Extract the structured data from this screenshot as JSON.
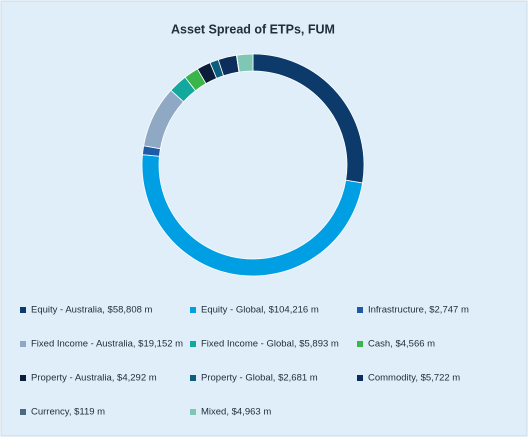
{
  "chart_data": {
    "type": "donut",
    "title": "Asset Spread of ETPs, FUM",
    "categories": [
      "Equity - Australia, $58,808 m",
      "Equity - Global, $104,216 m",
      "Infrastructure, $2,747 m",
      "Fixed Income - Australia, $19,152 m",
      "Fixed Income - Global, $5,893 m",
      "Cash, $4,566 m",
      "Property - Australia, $4,292 m",
      "Property - Global, $2,681 m",
      "Commodity, $5,722 m",
      "Currency, $119 m",
      "Mixed, $4,963 m"
    ],
    "values": [
      58808,
      104216,
      2747,
      19152,
      5893,
      4566,
      4292,
      2681,
      5722,
      119,
      4963
    ],
    "colors": [
      "#0b3a6b",
      "#009fe3",
      "#1f5aa6",
      "#8fa9c4",
      "#13a89e",
      "#3ab54a",
      "#0a1e3c",
      "#0b5e7e",
      "#0d2e5c",
      "#4a6a7f",
      "#7fc7b4"
    ]
  }
}
